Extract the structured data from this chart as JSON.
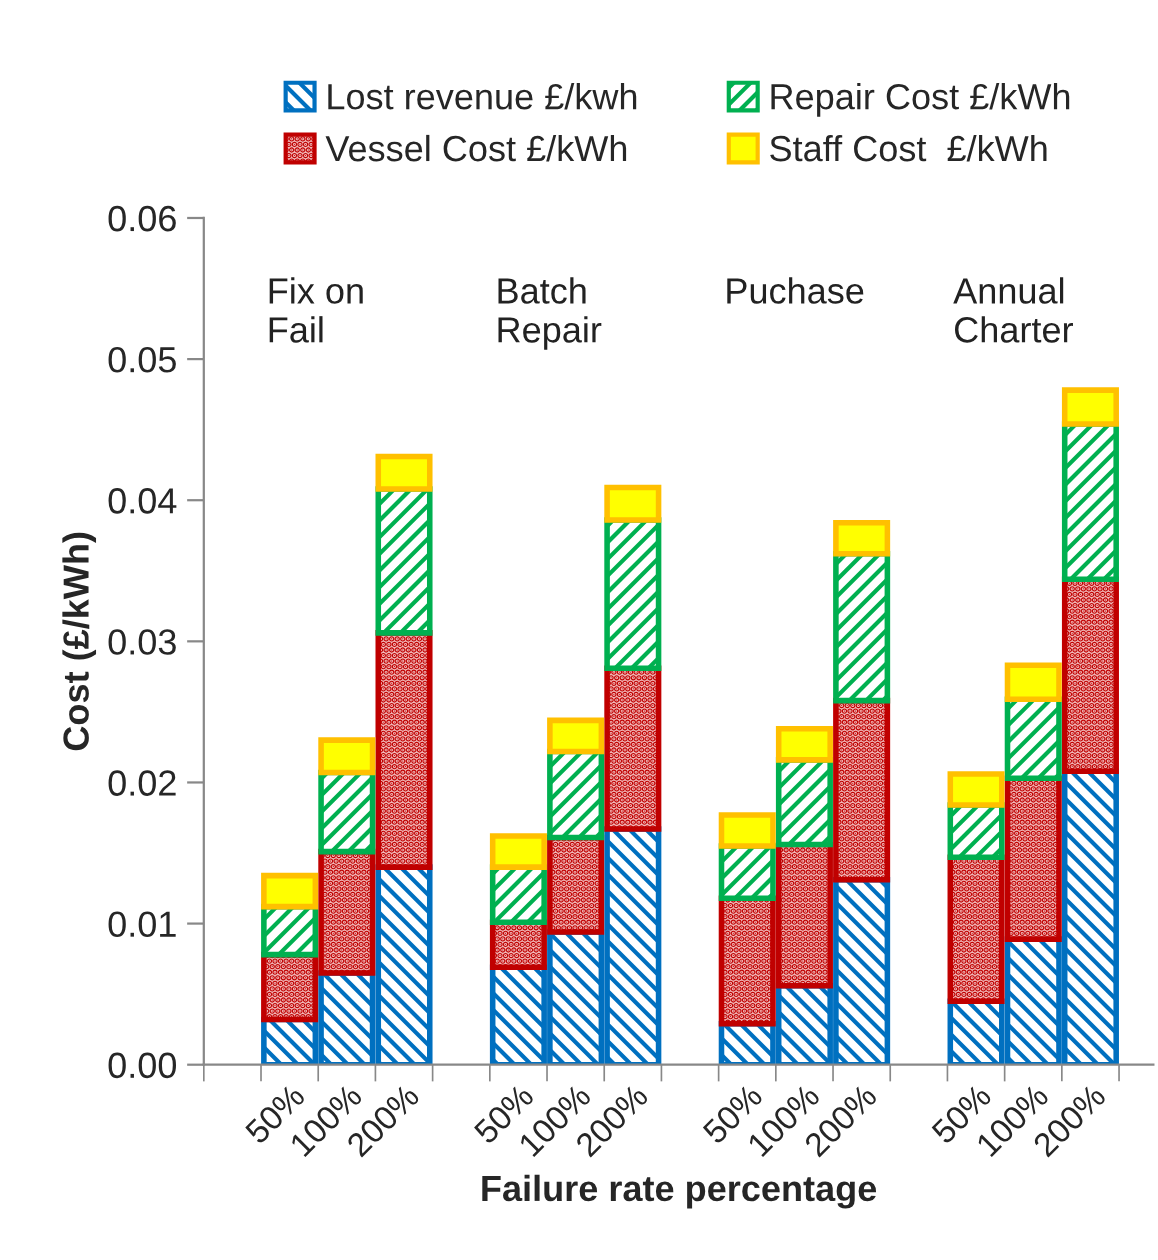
{
  "chart_data": {
    "type": "bar",
    "stacked": true,
    "xlabel": "Failure rate percentage",
    "ylabel": "Cost (£/kWh)",
    "categories": [
      null,
      "50%",
      "100%",
      "200%",
      null,
      "50%",
      "100%",
      "200%",
      null,
      "50%",
      "100%",
      "200%",
      null,
      "50%",
      "100%",
      "200%"
    ],
    "series": [
      {
        "name": "Lost revenue £/kwh",
        "color": "#0070c0",
        "values": [
          null,
          0.0032,
          0.0065,
          0.014,
          null,
          0.0069,
          0.0094,
          0.0167,
          null,
          0.0029,
          0.0056,
          0.0131,
          null,
          0.0045,
          0.0089,
          0.0208
        ]
      },
      {
        "name": "Vessel Cost £/kWh",
        "color": "#c00000",
        "values": [
          null,
          0.0046,
          0.0086,
          0.0166,
          null,
          0.0032,
          0.0067,
          0.0114,
          null,
          0.0089,
          0.01,
          0.0127,
          null,
          0.0102,
          0.0114,
          0.0136
        ]
      },
      {
        "name": "Repair Cost £/kWh",
        "color": "#00b050",
        "values": [
          null,
          0.0034,
          0.0056,
          0.0102,
          null,
          0.0039,
          0.0061,
          0.0105,
          null,
          0.0037,
          0.006,
          0.0104,
          null,
          0.0037,
          0.0056,
          0.011
        ]
      },
      {
        "name": "Staff Cost  £/kWh",
        "color": "#ffc000",
        "values": [
          null,
          0.0022,
          0.0023,
          0.0023,
          null,
          0.0022,
          0.0022,
          0.0023,
          null,
          0.0022,
          0.0022,
          0.0022,
          null,
          0.0022,
          0.0024,
          0.0024
        ]
      }
    ],
    "ylim": [
      0,
      0.06
    ],
    "yticks": [
      {
        "value": 0,
        "label": "0.00"
      },
      {
        "value": 0.01,
        "label": "0.01"
      },
      {
        "value": 0.02,
        "label": "0.02"
      },
      {
        "value": 0.03,
        "label": "0.03"
      },
      {
        "value": 0.04,
        "label": "0.04"
      },
      {
        "value": 0.05,
        "label": "0.05"
      },
      {
        "value": 0.06,
        "label": "0.06"
      }
    ],
    "annotations": [
      "Fix on\nFail",
      "Batch\nRepair",
      "Puchase",
      "Annual\nCharter"
    ],
    "grid": false,
    "legend": "top"
  }
}
